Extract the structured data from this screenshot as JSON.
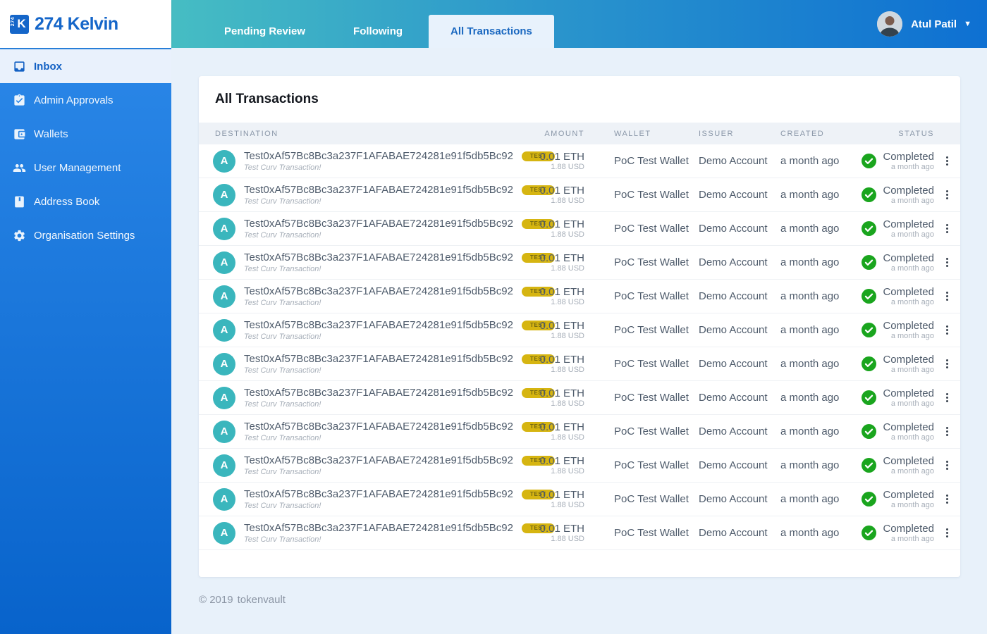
{
  "brand": {
    "name": "274 Kelvin",
    "icon_number": "274",
    "icon_letter": "K"
  },
  "header": {
    "tabs": [
      {
        "label": "Pending Review",
        "active": false
      },
      {
        "label": "Following",
        "active": false
      },
      {
        "label": "All Transactions",
        "active": true
      }
    ],
    "user": {
      "name": "Atul Patil"
    }
  },
  "sidebar": {
    "items": [
      {
        "label": "Inbox",
        "icon": "inbox-icon",
        "active": true
      },
      {
        "label": "Admin Approvals",
        "icon": "clipboard-check-icon",
        "active": false
      },
      {
        "label": "Wallets",
        "icon": "wallet-icon",
        "active": false
      },
      {
        "label": "User Management",
        "icon": "users-icon",
        "active": false
      },
      {
        "label": "Address Book",
        "icon": "address-book-icon",
        "active": false
      },
      {
        "label": "Organisation Settings",
        "icon": "gear-icon",
        "active": false
      }
    ]
  },
  "table": {
    "title": "All Transactions",
    "columns": {
      "destination": "DESTINATION",
      "amount": "AMOUNT",
      "wallet": "WALLET",
      "issuer": "ISSUER",
      "created": "CREATED",
      "status": "STATUS"
    },
    "rows": [
      {
        "avatar_letter": "A",
        "destination": "Test0xAf57Bc8Bc3a237F1AFABAE724281e91f5db5Bc92",
        "badge": "TEST",
        "subtitle": "Test Curv Transaction!",
        "amount_primary": "0.01 ETH",
        "amount_secondary": "1.88 USD",
        "wallet": "PoC Test Wallet",
        "issuer": "Demo Account",
        "created": "a month ago",
        "status": "Completed",
        "status_time": "a month ago"
      },
      {
        "avatar_letter": "A",
        "destination": "Test0xAf57Bc8Bc3a237F1AFABAE724281e91f5db5Bc92",
        "badge": "TEST",
        "subtitle": "Test Curv Transaction!",
        "amount_primary": "0.01 ETH",
        "amount_secondary": "1.88 USD",
        "wallet": "PoC Test Wallet",
        "issuer": "Demo Account",
        "created": "a month ago",
        "status": "Completed",
        "status_time": "a month ago"
      },
      {
        "avatar_letter": "A",
        "destination": "Test0xAf57Bc8Bc3a237F1AFABAE724281e91f5db5Bc92",
        "badge": "TEST",
        "subtitle": "Test Curv Transaction!",
        "amount_primary": "0.01 ETH",
        "amount_secondary": "1.88 USD",
        "wallet": "PoC Test Wallet",
        "issuer": "Demo Account",
        "created": "a month ago",
        "status": "Completed",
        "status_time": "a month ago"
      },
      {
        "avatar_letter": "A",
        "destination": "Test0xAf57Bc8Bc3a237F1AFABAE724281e91f5db5Bc92",
        "badge": "TEST",
        "subtitle": "Test Curv Transaction!",
        "amount_primary": "0.01 ETH",
        "amount_secondary": "1.88 USD",
        "wallet": "PoC Test Wallet",
        "issuer": "Demo Account",
        "created": "a month ago",
        "status": "Completed",
        "status_time": "a month ago"
      },
      {
        "avatar_letter": "A",
        "destination": "Test0xAf57Bc8Bc3a237F1AFABAE724281e91f5db5Bc92",
        "badge": "TEST",
        "subtitle": "Test Curv Transaction!",
        "amount_primary": "0.01 ETH",
        "amount_secondary": "1.88 USD",
        "wallet": "PoC Test Wallet",
        "issuer": "Demo Account",
        "created": "a month ago",
        "status": "Completed",
        "status_time": "a month ago"
      },
      {
        "avatar_letter": "A",
        "destination": "Test0xAf57Bc8Bc3a237F1AFABAE724281e91f5db5Bc92",
        "badge": "TEST",
        "subtitle": "Test Curv Transaction!",
        "amount_primary": "0.01 ETH",
        "amount_secondary": "1.88 USD",
        "wallet": "PoC Test Wallet",
        "issuer": "Demo Account",
        "created": "a month ago",
        "status": "Completed",
        "status_time": "a month ago"
      },
      {
        "avatar_letter": "A",
        "destination": "Test0xAf57Bc8Bc3a237F1AFABAE724281e91f5db5Bc92",
        "badge": "TEST",
        "subtitle": "Test Curv Transaction!",
        "amount_primary": "0.01 ETH",
        "amount_secondary": "1.88 USD",
        "wallet": "PoC Test Wallet",
        "issuer": "Demo Account",
        "created": "a month ago",
        "status": "Completed",
        "status_time": "a month ago"
      },
      {
        "avatar_letter": "A",
        "destination": "Test0xAf57Bc8Bc3a237F1AFABAE724281e91f5db5Bc92",
        "badge": "TEST",
        "subtitle": "Test Curv Transaction!",
        "amount_primary": "0.01 ETH",
        "amount_secondary": "1.88 USD",
        "wallet": "PoC Test Wallet",
        "issuer": "Demo Account",
        "created": "a month ago",
        "status": "Completed",
        "status_time": "a month ago"
      },
      {
        "avatar_letter": "A",
        "destination": "Test0xAf57Bc8Bc3a237F1AFABAE724281e91f5db5Bc92",
        "badge": "TEST",
        "subtitle": "Test Curv Transaction!",
        "amount_primary": "0.01 ETH",
        "amount_secondary": "1.88 USD",
        "wallet": "PoC Test Wallet",
        "issuer": "Demo Account",
        "created": "a month ago",
        "status": "Completed",
        "status_time": "a month ago"
      },
      {
        "avatar_letter": "A",
        "destination": "Test0xAf57Bc8Bc3a237F1AFABAE724281e91f5db5Bc92",
        "badge": "TEST",
        "subtitle": "Test Curv Transaction!",
        "amount_primary": "0.01 ETH",
        "amount_secondary": "1.88 USD",
        "wallet": "PoC Test Wallet",
        "issuer": "Demo Account",
        "created": "a month ago",
        "status": "Completed",
        "status_time": "a month ago"
      },
      {
        "avatar_letter": "A",
        "destination": "Test0xAf57Bc8Bc3a237F1AFABAE724281e91f5db5Bc92",
        "badge": "TEST",
        "subtitle": "Test Curv Transaction!",
        "amount_primary": "0.01 ETH",
        "amount_secondary": "1.88 USD",
        "wallet": "PoC Test Wallet",
        "issuer": "Demo Account",
        "created": "a month ago",
        "status": "Completed",
        "status_time": "a month ago"
      },
      {
        "avatar_letter": "A",
        "destination": "Test0xAf57Bc8Bc3a237F1AFABAE724281e91f5db5Bc92",
        "badge": "TEST",
        "subtitle": "Test Curv Transaction!",
        "amount_primary": "0.01 ETH",
        "amount_secondary": "1.88 USD",
        "wallet": "PoC Test Wallet",
        "issuer": "Demo Account",
        "created": "a month ago",
        "status": "Completed",
        "status_time": "a month ago"
      }
    ]
  },
  "footer": {
    "copyright": "© 2019",
    "brand": "tokenvault"
  },
  "colors": {
    "topbar_gradient_start": "#46bdc3",
    "topbar_gradient_end": "#0e70d2",
    "sidebar_gradient_start": "#2d8aea",
    "sidebar_gradient_end": "#0863cb",
    "brand_blue": "#1566c9",
    "active_item_bg": "#e9f1fc",
    "content_bg": "#e8f1fa",
    "badge_bg": "#d6b511",
    "avatar_teal": "#3ab6bd",
    "status_green": "#1aa51e"
  }
}
